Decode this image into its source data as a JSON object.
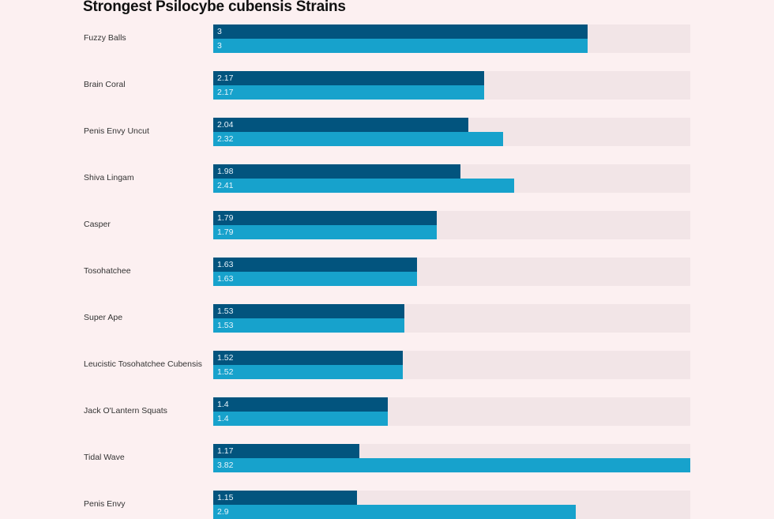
{
  "chart_data": {
    "type": "bar",
    "orientation": "horizontal",
    "title": "Strongest Psilocybe cubensis Strains",
    "xlabel": "",
    "ylabel": "",
    "xlim": [
      0,
      3.82
    ],
    "grid": false,
    "legend": "none",
    "categories": [
      "Fuzzy Balls",
      "Brain Coral",
      "Penis Envy Uncut",
      "Shiva Lingam",
      "Casper",
      "Tosohatchee",
      "Super Ape",
      "Leucistic Tosohatchee Cubensis",
      "Jack O'Lantern Squats",
      "Tidal Wave",
      "Penis Envy"
    ],
    "series": [
      {
        "name": "series-1",
        "color": "#02547e",
        "values": [
          3,
          2.17,
          2.04,
          1.98,
          1.79,
          1.63,
          1.53,
          1.52,
          1.4,
          1.17,
          1.15
        ],
        "labels": [
          "3",
          "2.17",
          "2.04",
          "1.98",
          "1.79",
          "1.63",
          "1.53",
          "1.52",
          "1.4",
          "1.17",
          "1.15"
        ]
      },
      {
        "name": "series-2",
        "color": "#17a2cc",
        "values": [
          3,
          2.17,
          2.32,
          2.41,
          1.79,
          1.63,
          1.53,
          1.52,
          1.4,
          3.82,
          2.9
        ],
        "labels": [
          "3",
          "2.17",
          "2.32",
          "2.41",
          "1.79",
          "1.63",
          "1.53",
          "1.52",
          "1.4",
          "3.82",
          "2.9"
        ]
      }
    ]
  }
}
